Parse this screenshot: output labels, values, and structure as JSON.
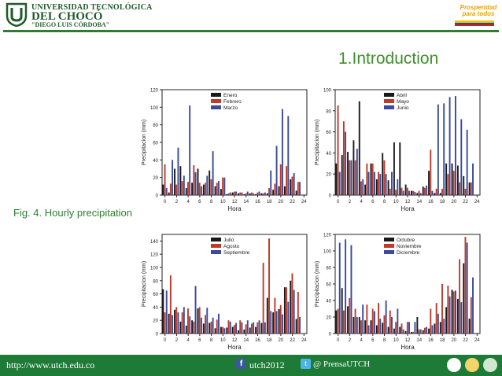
{
  "header": {
    "university_line1": "UNIVERSIDAD TECNOLÓGICA",
    "university_line2": "DEL CHOCÓ",
    "university_line3": "\"DIEGO LUIS CÓRDOBA\"",
    "brand_text": "Prosperidad para todos"
  },
  "slide": {
    "title": "1.Introduction",
    "caption": "Fig.  4. Hourly precipitation"
  },
  "footer": {
    "url": "http://www.utch.edu.co",
    "facebook": "utch2012",
    "twitter": "@ PrensaUTCH"
  },
  "colors": {
    "primary_green": "#2e7d32",
    "title_green": "#3f8f2e",
    "series_black": "#1a1a1a",
    "series_red": "#c0392b",
    "series_blue": "#3a4a9c"
  },
  "chart_data": [
    {
      "type": "bar",
      "xlabel": "Hora",
      "ylabel": "Precipitacion (mm)",
      "ylim": [
        0,
        120
      ],
      "yticks": [
        0,
        20,
        40,
        60,
        80,
        100,
        120
      ],
      "xticks": [
        0,
        2,
        4,
        6,
        8,
        10,
        12,
        14,
        16,
        18,
        20,
        22,
        24
      ],
      "x": [
        0,
        1,
        2,
        3,
        4,
        5,
        6,
        7,
        8,
        9,
        10,
        11,
        12,
        13,
        14,
        15,
        16,
        17,
        18,
        19,
        20,
        21,
        22,
        23
      ],
      "legend_position": "top-center",
      "series": [
        {
          "name": "Enero",
          "color": "#1a1a1a",
          "values": [
            12,
            3,
            30,
            33,
            8,
            14,
            30,
            12,
            28,
            10,
            7,
            1,
            3,
            2,
            1,
            2,
            1,
            2,
            2,
            6,
            10,
            10,
            18,
            5
          ]
        },
        {
          "name": "Febrero",
          "color": "#c0392b",
          "values": [
            35,
            13,
            12,
            16,
            15,
            34,
            14,
            14,
            18,
            14,
            20,
            2,
            4,
            3,
            2,
            3,
            3,
            2,
            8,
            13,
            35,
            33,
            21,
            15
          ]
        },
        {
          "name": "Marzo",
          "color": "#3a4a9c",
          "values": [
            8,
            40,
            54,
            22,
            102,
            26,
            10,
            22,
            50,
            16,
            20,
            3,
            4,
            3,
            4,
            2,
            4,
            3,
            28,
            56,
            98,
            90,
            25,
            15
          ]
        }
      ]
    },
    {
      "type": "bar",
      "xlabel": "Hora",
      "ylabel": "Precipitacion (mm)",
      "ylim": [
        0,
        100
      ],
      "yticks": [
        0,
        20,
        40,
        60,
        80,
        100
      ],
      "xticks": [
        0,
        2,
        4,
        6,
        8,
        10,
        12,
        14,
        16,
        18,
        20,
        22,
        24
      ],
      "x": [
        0,
        1,
        2,
        3,
        4,
        5,
        6,
        7,
        8,
        9,
        10,
        11,
        12,
        13,
        14,
        15,
        16,
        17,
        18,
        19,
        20,
        21,
        22,
        23
      ],
      "legend_position": "top-center",
      "series": [
        {
          "name": "Abril",
          "color": "#1a1a1a",
          "values": [
            30,
            38,
            41,
            52,
            89,
            10,
            30,
            15,
            40,
            14,
            50,
            50,
            10,
            4,
            2,
            8,
            23,
            2,
            2,
            30,
            30,
            28,
            18,
            12
          ]
        },
        {
          "name": "Mayo",
          "color": "#c0392b",
          "values": [
            85,
            70,
            33,
            33,
            13,
            30,
            30,
            22,
            33,
            6,
            5,
            7,
            7,
            4,
            4,
            7,
            43,
            6,
            6,
            20,
            23,
            12,
            6,
            12
          ]
        },
        {
          "name": "Junio",
          "color": "#3a4a9c",
          "values": [
            22,
            60,
            33,
            44,
            15,
            22,
            22,
            20,
            20,
            22,
            15,
            4,
            4,
            3,
            2,
            9,
            4,
            86,
            87,
            93,
            94,
            72,
            62,
            30
          ]
        }
      ]
    },
    {
      "type": "bar",
      "xlabel": "Hora",
      "ylabel": "Precipitacion (mm)",
      "ylim": [
        0,
        150
      ],
      "yticks": [
        0,
        20,
        40,
        60,
        80,
        100,
        120,
        140
      ],
      "xticks": [
        0,
        2,
        4,
        6,
        8,
        10,
        12,
        14,
        16,
        18,
        20,
        22,
        24
      ],
      "x": [
        0,
        1,
        2,
        3,
        4,
        5,
        6,
        7,
        8,
        9,
        10,
        11,
        12,
        13,
        14,
        15,
        16,
        17,
        18,
        19,
        20,
        21,
        22,
        23
      ],
      "legend_position": "top-center",
      "series": [
        {
          "name": "Julio",
          "color": "#1a1a1a",
          "values": [
            67,
            30,
            36,
            18,
            12,
            20,
            38,
            15,
            16,
            8,
            10,
            9,
            10,
            5,
            6,
            9,
            10,
            16,
            54,
            32,
            37,
            70,
            80,
            22
          ]
        },
        {
          "name": "Agosto",
          "color": "#c0392b",
          "values": [
            32,
            88,
            40,
            32,
            38,
            18,
            40,
            28,
            18,
            21,
            10,
            20,
            13,
            20,
            14,
            15,
            17,
            107,
            144,
            54,
            43,
            70,
            91,
            63
          ]
        },
        {
          "name": "Septiembre",
          "color": "#3a4a9c",
          "values": [
            65,
            28,
            32,
            40,
            26,
            72,
            24,
            39,
            24,
            30,
            8,
            18,
            16,
            17,
            20,
            17,
            20,
            17,
            34,
            34,
            29,
            48,
            66,
            25
          ]
        }
      ]
    },
    {
      "type": "bar",
      "xlabel": "Hora",
      "ylabel": "Precipitacion (mm)",
      "ylim": [
        0,
        120
      ],
      "yticks": [
        0,
        20,
        40,
        60,
        80,
        100,
        120
      ],
      "xticks": [
        0,
        2,
        4,
        6,
        8,
        10,
        12,
        14,
        16,
        18,
        20,
        22,
        24
      ],
      "x": [
        0,
        1,
        2,
        3,
        4,
        5,
        6,
        7,
        8,
        9,
        10,
        11,
        12,
        13,
        14,
        15,
        16,
        17,
        18,
        19,
        20,
        21,
        22,
        23
      ],
      "legend_position": "top-center",
      "series": [
        {
          "name": "Octubre",
          "color": "#1a1a1a",
          "values": [
            28,
            55,
            33,
            20,
            20,
            16,
            16,
            10,
            13,
            8,
            6,
            8,
            3,
            2,
            20,
            4,
            6,
            12,
            14,
            32,
            53,
            42,
            85,
            18
          ]
        },
        {
          "name": "Noviembre",
          "color": "#c0392b",
          "values": [
            30,
            28,
            43,
            30,
            16,
            35,
            30,
            37,
            22,
            28,
            14,
            12,
            14,
            2,
            5,
            7,
            30,
            37,
            60,
            58,
            51,
            90,
            117,
            44
          ]
        },
        {
          "name": "Diciembre",
          "color": "#3a4a9c",
          "values": [
            110,
            114,
            107,
            20,
            35,
            10,
            27,
            18,
            40,
            20,
            30,
            5,
            14,
            14,
            5,
            8,
            10,
            24,
            18,
            45,
            52,
            38,
            110,
            68
          ]
        }
      ]
    }
  ]
}
